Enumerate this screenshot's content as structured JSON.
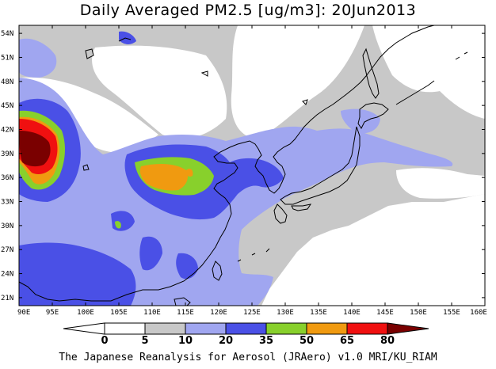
{
  "title": "Daily Averaged PM2.5 [ug/m3]: 20Jun2013",
  "credit": "The Japanese Reanalysis for Aerosol (JRAero) v1.0 MRI/KU_RIAM",
  "map": {
    "lon_range": [
      90,
      160
    ],
    "lat_range": [
      20,
      55
    ],
    "lon_ticks": [
      "90E",
      "95E",
      "100E",
      "105E",
      "110E",
      "115E",
      "120E",
      "125E",
      "130E",
      "135E",
      "140E",
      "145E",
      "150E",
      "155E",
      "160E"
    ],
    "lat_ticks": [
      "21N",
      "24N",
      "27N",
      "30N",
      "33N",
      "36N",
      "39N",
      "42N",
      "45N",
      "48N",
      "51N",
      "54N"
    ],
    "lat_tick_values": [
      21,
      24,
      27,
      30,
      33,
      36,
      39,
      42,
      45,
      48,
      51,
      54
    ]
  },
  "colorbar": {
    "labels": [
      "0",
      "5",
      "10",
      "20",
      "35",
      "50",
      "65",
      "80"
    ],
    "colors": [
      "#ffffff",
      "#c8c8c8",
      "#a0a6f0",
      "#4a50e6",
      "#88d02c",
      "#f09a10",
      "#f01010",
      "#7a0000"
    ]
  }
}
